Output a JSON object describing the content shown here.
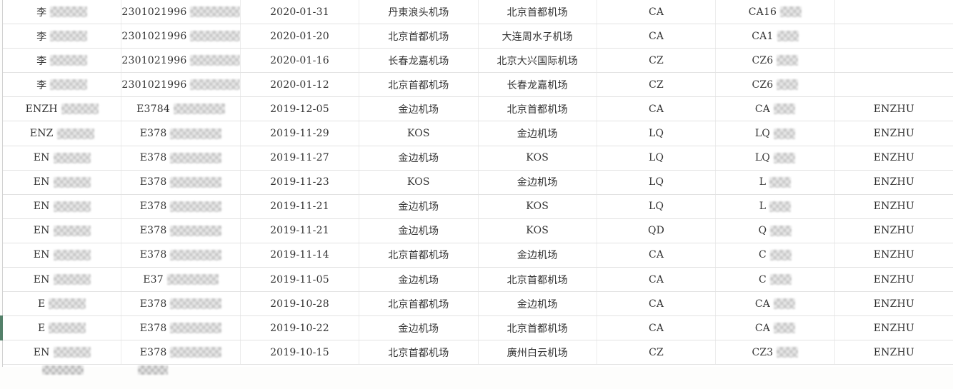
{
  "table": {
    "accent_marker_color": "#538069",
    "grid_line_color": "#e2e2e2",
    "rows": [
      {
        "name_prefix": "李",
        "name_redacted": true,
        "id_prefix": "2301021996",
        "id_redacted": true,
        "date": "2020-01-31",
        "departure": "丹東浪头机场",
        "arrival": "北京首都机场",
        "airline": "CA",
        "flight_prefix": "CA16",
        "flight_redacted": true,
        "passenger": "",
        "marker": false
      },
      {
        "name_prefix": "李",
        "name_redacted": true,
        "id_prefix": "2301021996",
        "id_redacted": true,
        "date": "2020-01-20",
        "departure": "北京首都机场",
        "arrival": "大连周水子机场",
        "airline": "CA",
        "flight_prefix": "CA1",
        "flight_redacted": true,
        "passenger": "",
        "marker": false
      },
      {
        "name_prefix": "李",
        "name_redacted": true,
        "id_prefix": "2301021996",
        "id_redacted": true,
        "date": "2020-01-16",
        "departure": "长春龙嘉机场",
        "arrival": "北京大兴国际机场",
        "airline": "CZ",
        "flight_prefix": "CZ6",
        "flight_redacted": true,
        "passenger": "",
        "marker": false
      },
      {
        "name_prefix": "李",
        "name_redacted": true,
        "id_prefix": "2301021996",
        "id_redacted": true,
        "date": "2020-01-12",
        "departure": "北京首都机场",
        "arrival": "长春龙嘉机场",
        "airline": "CZ",
        "flight_prefix": "CZ6",
        "flight_redacted": true,
        "passenger": "",
        "marker": false
      },
      {
        "name_prefix": "ENZH",
        "name_redacted": true,
        "id_prefix": "E3784",
        "id_redacted": true,
        "date": "2019-12-05",
        "departure": "金边机场",
        "arrival": "北京首都机场",
        "airline": "CA",
        "flight_prefix": "CA",
        "flight_redacted": true,
        "passenger": "ENZHU",
        "marker": false
      },
      {
        "name_prefix": "ENZ",
        "name_redacted": true,
        "id_prefix": "E378",
        "id_redacted": true,
        "date": "2019-11-29",
        "departure": "KOS",
        "arrival": "金边机场",
        "airline": "LQ",
        "flight_prefix": "LQ",
        "flight_redacted": true,
        "passenger": "ENZHU",
        "marker": false
      },
      {
        "name_prefix": "EN",
        "name_redacted": true,
        "id_prefix": "E378",
        "id_redacted": true,
        "date": "2019-11-27",
        "departure": "金边机场",
        "arrival": "KOS",
        "airline": "LQ",
        "flight_prefix": "LQ",
        "flight_redacted": true,
        "passenger": "ENZHU",
        "marker": false
      },
      {
        "name_prefix": "EN",
        "name_redacted": true,
        "id_prefix": "E378",
        "id_redacted": true,
        "date": "2019-11-23",
        "departure": "KOS",
        "arrival": "金边机场",
        "airline": "LQ",
        "flight_prefix": "L",
        "flight_redacted": true,
        "passenger": "ENZHU",
        "marker": false
      },
      {
        "name_prefix": "EN",
        "name_redacted": true,
        "id_prefix": "E378",
        "id_redacted": true,
        "date": "2019-11-21",
        "departure": "金边机场",
        "arrival": "KOS",
        "airline": "LQ",
        "flight_prefix": "L",
        "flight_redacted": true,
        "passenger": "ENZHU",
        "marker": false
      },
      {
        "name_prefix": "EN",
        "name_redacted": true,
        "id_prefix": "E378",
        "id_redacted": true,
        "date": "2019-11-21",
        "departure": "金边机场",
        "arrival": "KOS",
        "airline": "QD",
        "flight_prefix": "Q",
        "flight_redacted": true,
        "passenger": "ENZHU",
        "marker": false
      },
      {
        "name_prefix": "EN",
        "name_redacted": true,
        "id_prefix": "E378",
        "id_redacted": true,
        "date": "2019-11-14",
        "departure": "北京首都机场",
        "arrival": "金边机场",
        "airline": "CA",
        "flight_prefix": "C",
        "flight_redacted": true,
        "passenger": "ENZHU",
        "marker": false
      },
      {
        "name_prefix": "EN",
        "name_redacted": true,
        "id_prefix": "E37",
        "id_redacted": true,
        "date": "2019-11-05",
        "departure": "金边机场",
        "arrival": "北京首都机场",
        "airline": "CA",
        "flight_prefix": "C",
        "flight_redacted": true,
        "passenger": "ENZHU",
        "marker": false
      },
      {
        "name_prefix": "E",
        "name_redacted": true,
        "id_prefix": "E378",
        "id_redacted": true,
        "date": "2019-10-28",
        "departure": "北京首都机场",
        "arrival": "金边机场",
        "airline": "CA",
        "flight_prefix": "CA",
        "flight_redacted": true,
        "passenger": "ENZHU",
        "marker": false
      },
      {
        "name_prefix": "E",
        "name_redacted": true,
        "id_prefix": "E378",
        "id_redacted": true,
        "date": "2019-10-22",
        "departure": "金边机场",
        "arrival": "北京首都机场",
        "airline": "CA",
        "flight_prefix": "CA",
        "flight_redacted": true,
        "passenger": "ENZHU",
        "marker": true
      },
      {
        "name_prefix": "EN",
        "name_redacted": true,
        "id_prefix": "E378",
        "id_redacted": true,
        "date": "2019-10-15",
        "departure": "北京首都机场",
        "arrival": "廣州白云机场",
        "airline": "CZ",
        "flight_prefix": "CZ3",
        "flight_redacted": true,
        "passenger": "ENZHU",
        "marker": false
      }
    ],
    "partial_bottom_row": {
      "marker": true,
      "redacted_cells": [
        "name",
        "id_number"
      ]
    }
  }
}
